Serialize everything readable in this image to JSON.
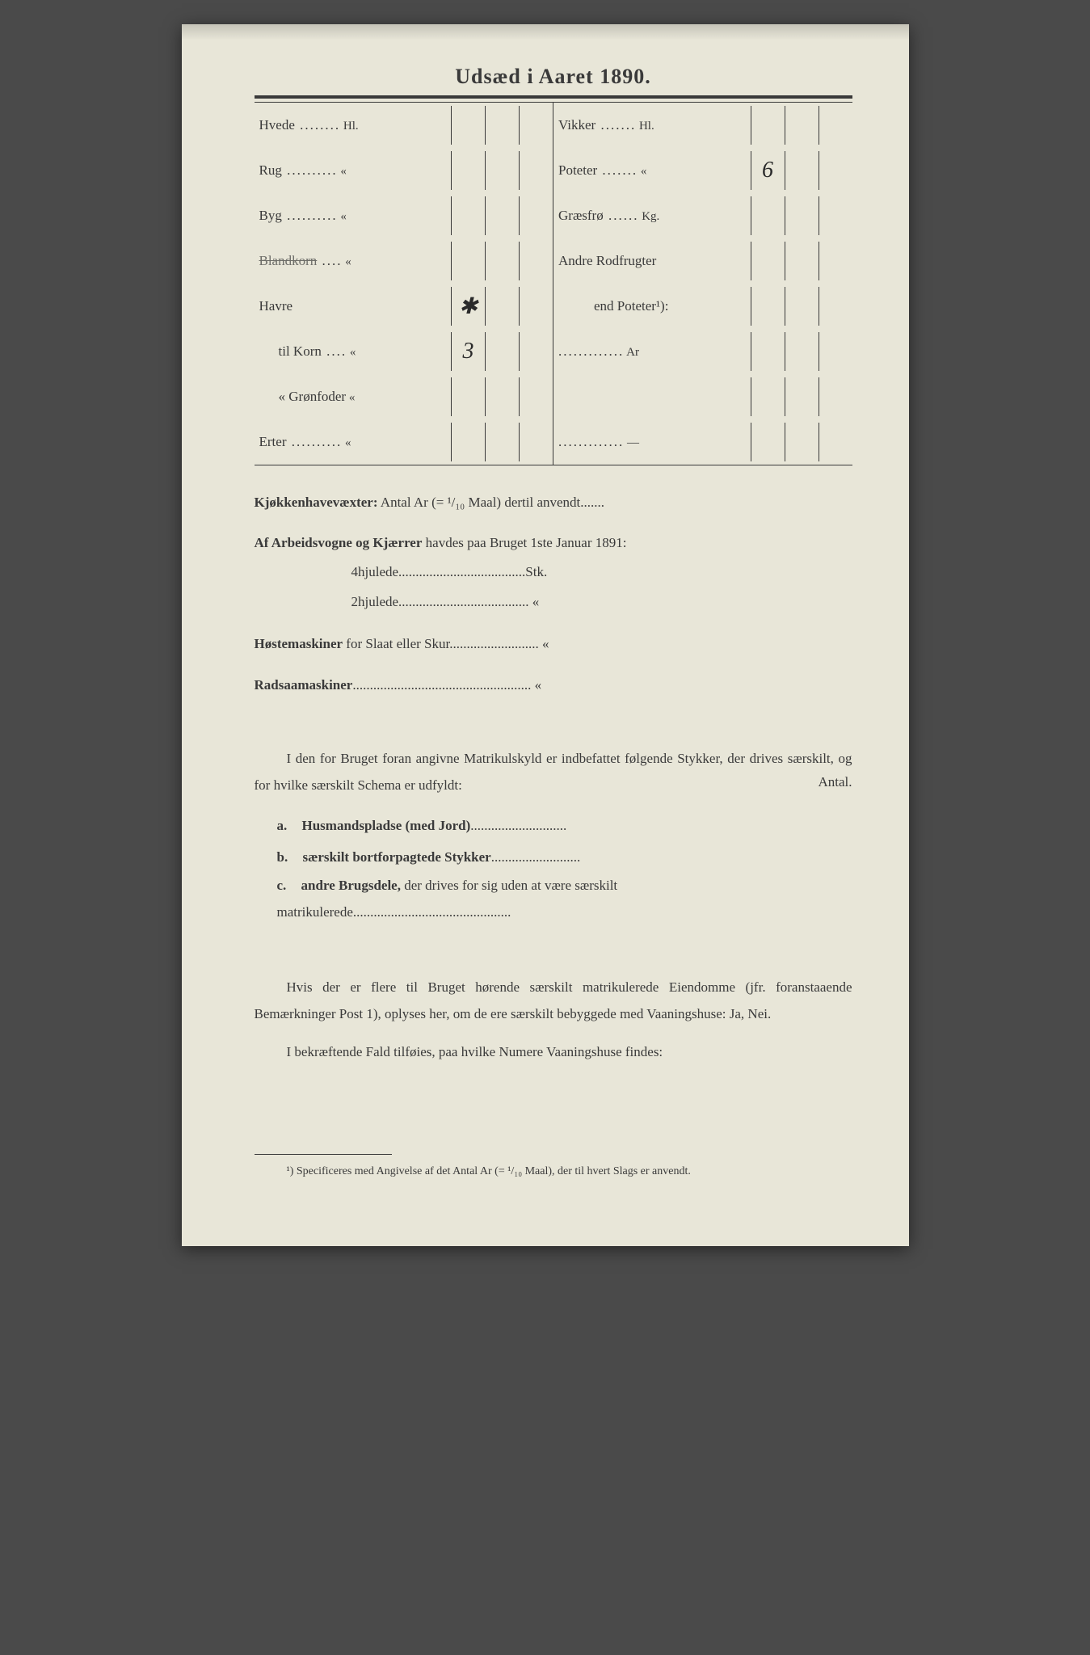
{
  "title": "Udsæd i Aaret 1890.",
  "left_rows": [
    {
      "label": "Hvede",
      "dots": "........",
      "unit": "Hl.",
      "cells": [
        "",
        "",
        ""
      ]
    },
    {
      "label": "Rug",
      "dots": "..........",
      "unit": "«",
      "cells": [
        "",
        "",
        ""
      ]
    },
    {
      "label": "Byg",
      "dots": "..........",
      "unit": "«",
      "cells": [
        "",
        "",
        ""
      ]
    },
    {
      "label": "Blandkorn",
      "dots": "....",
      "unit": "«",
      "cells": [
        "",
        "",
        ""
      ],
      "struck": true
    },
    {
      "label": "Havre",
      "dots": "",
      "unit": "",
      "cells": [
        "✱",
        "",
        ""
      ]
    },
    {
      "label": "til Korn",
      "dots": "....",
      "unit": "«",
      "cells": [
        "3",
        "",
        ""
      ],
      "indent": true
    },
    {
      "label": "«  Grønfoder",
      "dots": "",
      "unit": "«",
      "cells": [
        "",
        "",
        ""
      ],
      "indent": true
    },
    {
      "label": "Erter",
      "dots": "..........",
      "unit": "«",
      "cells": [
        "",
        "",
        ""
      ]
    }
  ],
  "right_rows": [
    {
      "label": "Vikker",
      "dots": ".......",
      "unit": "Hl.",
      "cells": [
        "",
        "",
        ""
      ]
    },
    {
      "label": "Poteter",
      "dots": ".......",
      "unit": "«",
      "cells": [
        "6",
        "",
        ""
      ]
    },
    {
      "label": "Græsfrø",
      "dots": "......",
      "unit": "Kg.",
      "cells": [
        "",
        "",
        ""
      ]
    },
    {
      "label": "Andre Rodfrugter",
      "dots": "",
      "unit": "",
      "cells": [
        "",
        "",
        ""
      ]
    },
    {
      "label": "end Poteter¹):",
      "dots": "",
      "unit": "",
      "cells": [
        "",
        "",
        ""
      ],
      "indent2": true
    },
    {
      "label": "",
      "dots": ".............",
      "unit": "Ar",
      "cells": [
        "",
        "",
        ""
      ]
    },
    {
      "label": "",
      "dots": "",
      "unit": "",
      "cells": [
        "",
        "",
        ""
      ]
    },
    {
      "label": "",
      "dots": ".............",
      "unit": "—",
      "cells": [
        "",
        "",
        ""
      ]
    }
  ],
  "kjokken": {
    "label": "Kjøkkenhavevæxter:",
    "text": "Antal Ar (= ¹/₁₀ Maal) dertil anvendt",
    "trail": "......."
  },
  "arbeids": {
    "label": "Af Arbeidsvogne og Kjærrer",
    "text": "havdes paa Bruget 1ste Januar 1891:",
    "r1_label": "4hjulede",
    "r1_trail": ".....................................",
    "r1_unit": "Stk.",
    "r2_label": "2hjulede",
    "r2_trail": "......................................",
    "r2_unit": "«"
  },
  "hoste": {
    "label": "Høstemaskiner",
    "text": "for Slaat eller Skur",
    "trail": "..........................",
    "unit": "«"
  },
  "rad": {
    "label": "Radsaamaskiner",
    "trail": "....................................................",
    "unit": "«"
  },
  "matrikul": {
    "p1": "I den for Bruget foran angivne Matrikulskyld er indbefattet følgende Stykker, der drives særskilt, og for hvilke særskilt Schema er udfyldt:",
    "antal": "Antal.",
    "a_letter": "a.",
    "a_label": "Husmandspladse (med Jord)",
    "a_trail": "............................",
    "b_letter": "b.",
    "b_label": "særskilt bortforpagtede Stykker",
    "b_trail": "..........................",
    "c_letter": "c.",
    "c_label": "andre Brugsdele,",
    "c_rest": "der drives for sig uden at være særskilt matrikulerede",
    "c_trail": ".............................................."
  },
  "hvis": {
    "p1": "Hvis der er flere til Bruget hørende særskilt matrikulerede Eiendomme (jfr. foranstaaende Bemærkninger Post 1), oplyses her, om de ere særskilt bebyggede med ",
    "vaan": "Vaaningshuse:",
    "jn": " Ja, Nei.",
    "p2a": "I bekræftende Fald tilføies, paa ",
    "p2b": "hvilke Numere Vaaningshuse findes:"
  },
  "footnote": "¹) Specificeres med Angivelse af det Antal Ar (= ¹/₁₀ Maal), der til hvert Slags er anvendt."
}
